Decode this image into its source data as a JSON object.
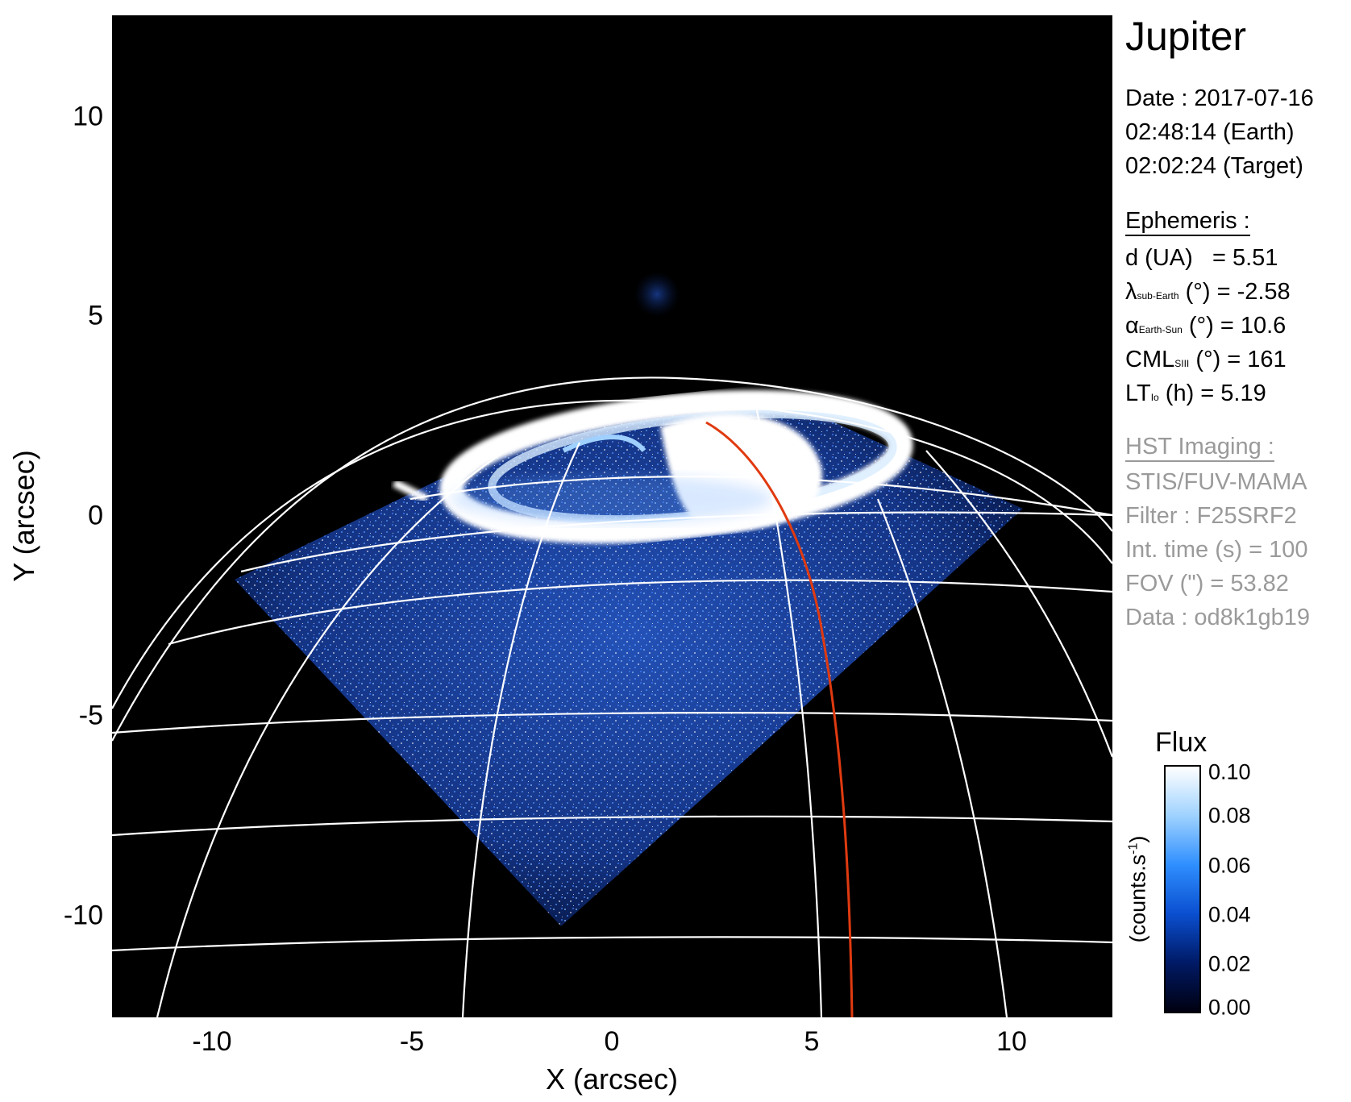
{
  "axes": {
    "x_label": "X (arcsec)",
    "y_label": "Y (arcsec)",
    "x_ticks": [
      "-10",
      "-5",
      "0",
      "5",
      "10"
    ],
    "y_ticks": [
      "10",
      "5",
      "0",
      "-5",
      "-10"
    ]
  },
  "panel": {
    "title": "Jupiter",
    "date_line": "Date : 2017-07-16",
    "earth_time": "02:48:14 (Earth)",
    "target_time": "02:02:24 (Target)",
    "ephemeris": {
      "header": "Ephemeris :",
      "d": {
        "label": "d (UA)",
        "value": "= 5.51"
      },
      "lat": {
        "symbol": "λ",
        "sub": "sub-Earth",
        "unit": "(°)",
        "value": "= -2.58"
      },
      "phase": {
        "symbol": "α",
        "sub": "Earth-Sun",
        "unit": "(°)",
        "value": "= 10.6"
      },
      "cml": {
        "symbol": "CML",
        "sub": "SIII",
        "unit": "(°)",
        "value": "= 161"
      },
      "lt": {
        "symbol": "LT",
        "sub": "Io",
        "unit": "(h)",
        "value": "= 5.19"
      }
    },
    "hst": {
      "header": "HST Imaging :",
      "instrument": "STIS/FUV-MAMA",
      "filter": "Filter : F25SRF2",
      "int_time": "Int. time (s) = 100",
      "fov": "FOV (\") = 53.82",
      "data": "Data : od8k1gb19"
    }
  },
  "colorbar": {
    "title": "Flux",
    "unit": "(counts.s",
    "unit_sup": "-1",
    "unit_close": ")",
    "ticks": [
      "0.10",
      "0.08",
      "0.06",
      "0.04",
      "0.02",
      "0.00"
    ],
    "colors": [
      "#000010",
      "#001a66",
      "#0a4fd0",
      "#2f8fff",
      "#9fd2ff",
      "#ffffff"
    ]
  },
  "colors": {
    "background": "#000000",
    "grid": "#ffffff",
    "footprint": "#e03a10",
    "disk_glow": "#1f50c8",
    "aurora": "#ffffff"
  }
}
